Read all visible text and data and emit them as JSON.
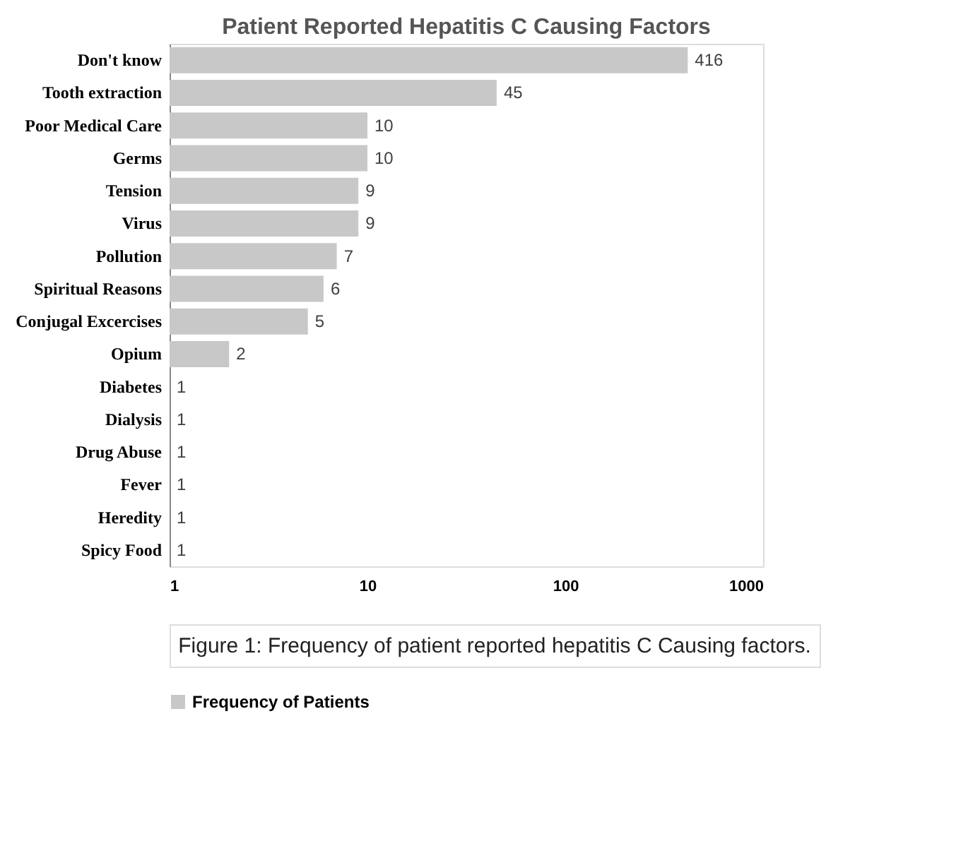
{
  "chart_data": {
    "type": "bar",
    "orientation": "horizontal",
    "title": "Patient Reported Hepatitis C Causing Factors",
    "categories": [
      "Don't know",
      "Tooth extraction",
      "Poor Medical Care",
      "Germs",
      "Tension",
      "Virus",
      "Pollution",
      "Spiritual Reasons",
      "Conjugal Excercises",
      "Opium",
      "Diabetes",
      "Dialysis",
      "Drug Abuse",
      "Fever",
      "Heredity",
      "Spicy Food"
    ],
    "series": [
      {
        "name": "Frequency of Patients",
        "color": "#c8c8c8",
        "values": [
          416,
          45,
          10,
          10,
          9,
          9,
          7,
          6,
          5,
          2,
          1,
          1,
          1,
          1,
          1,
          1
        ]
      }
    ],
    "log": "x",
    "xlim": [
      1,
      1000
    ],
    "xticks": [
      1,
      10,
      100,
      1000
    ],
    "grid": false,
    "legend": "bottom",
    "data_labels": true,
    "annotations": [
      "Figure 1: Frequency of patient reported hepatitis C Causing factors."
    ]
  }
}
